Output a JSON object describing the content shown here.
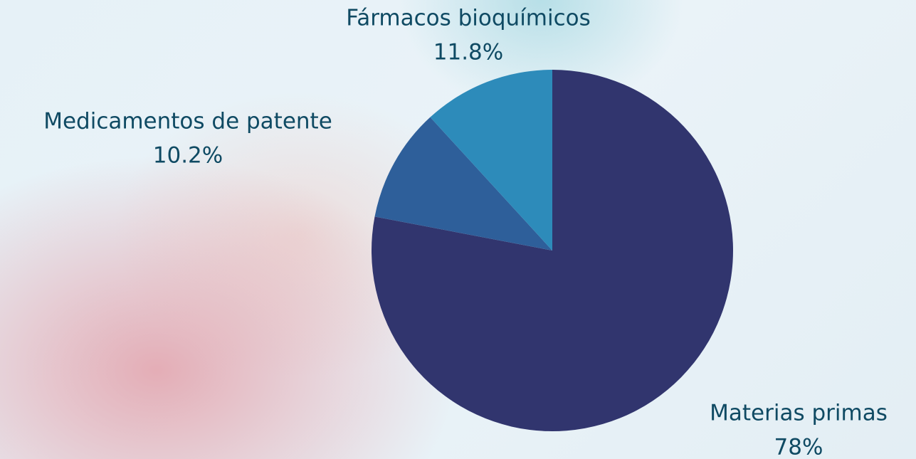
{
  "chart_data": {
    "type": "pie",
    "categories": [
      "Materias primas",
      "Medicamentos de patente",
      "Fármacos bioquímicos"
    ],
    "values": [
      78,
      10.2,
      11.8
    ],
    "value_labels": [
      "78%",
      "10.2%",
      "11.8%"
    ],
    "colors": [
      "#31356e",
      "#2e5f9a",
      "#2d8bba"
    ]
  }
}
